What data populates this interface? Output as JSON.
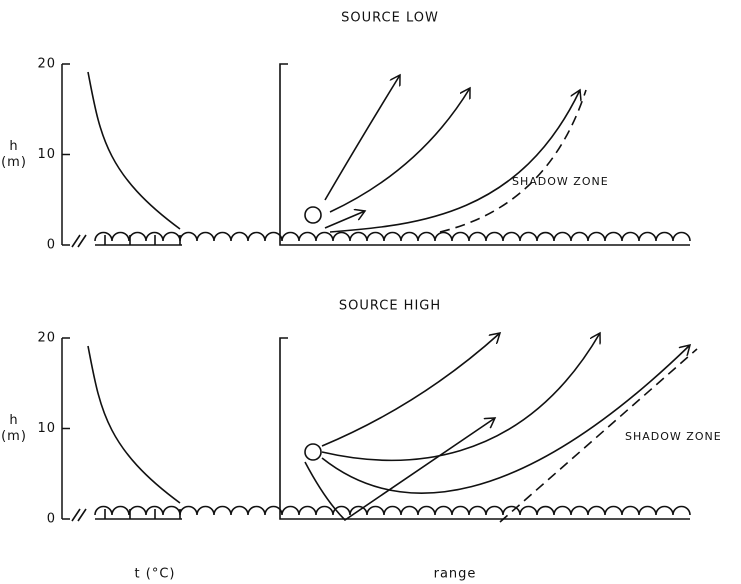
{
  "panels": [
    {
      "title": "SOURCE  LOW",
      "y_label": [
        "h",
        "(m)"
      ],
      "yticks": [
        20,
        10,
        0
      ],
      "annotation": "SHADOW ZONE"
    },
    {
      "title": "SOURCE  HIGH",
      "y_label": [
        "h",
        "(m)"
      ],
      "yticks": [
        20,
        10,
        0
      ],
      "annotation": "SHADOW ZONE"
    }
  ],
  "x_labels": [
    "t (°C)",
    "range"
  ]
}
